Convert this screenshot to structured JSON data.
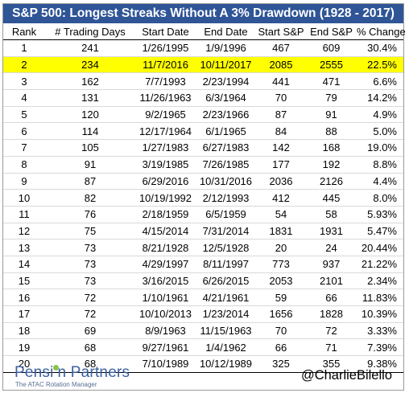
{
  "title": "S&P 500: Longest Streaks Without A 3% Drawdown (1928 - 2017)",
  "columns": [
    "Rank",
    "# Trading Days",
    "Start Date",
    "End Date",
    "Start S&P",
    "End S&P",
    "% Change"
  ],
  "rows": [
    [
      "1",
      "241",
      "1/26/1995",
      "1/9/1996",
      "467",
      "609",
      "30.4%"
    ],
    [
      "2",
      "234",
      "11/7/2016",
      "10/11/2017",
      "2085",
      "2555",
      "22.5%"
    ],
    [
      "3",
      "162",
      "7/7/1993",
      "2/23/1994",
      "441",
      "471",
      "6.6%"
    ],
    [
      "4",
      "131",
      "11/26/1963",
      "6/3/1964",
      "70",
      "79",
      "14.2%"
    ],
    [
      "5",
      "120",
      "9/2/1965",
      "2/23/1966",
      "87",
      "91",
      "4.9%"
    ],
    [
      "6",
      "114",
      "12/17/1964",
      "6/1/1965",
      "84",
      "88",
      "5.0%"
    ],
    [
      "7",
      "105",
      "1/27/1983",
      "6/27/1983",
      "142",
      "168",
      "19.0%"
    ],
    [
      "8",
      "91",
      "3/19/1985",
      "7/26/1985",
      "177",
      "192",
      "8.8%"
    ],
    [
      "9",
      "87",
      "6/29/2016",
      "10/31/2016",
      "2036",
      "2126",
      "4.4%"
    ],
    [
      "10",
      "82",
      "10/19/1992",
      "2/12/1993",
      "412",
      "445",
      "8.0%"
    ],
    [
      "11",
      "76",
      "2/18/1959",
      "6/5/1959",
      "54",
      "58",
      "5.93%"
    ],
    [
      "12",
      "75",
      "4/15/2014",
      "7/31/2014",
      "1831",
      "1931",
      "5.47%"
    ],
    [
      "13",
      "73",
      "8/21/1928",
      "12/5/1928",
      "20",
      "24",
      "20.44%"
    ],
    [
      "14",
      "73",
      "4/29/1997",
      "8/11/1997",
      "773",
      "937",
      "21.22%"
    ],
    [
      "15",
      "73",
      "3/16/2015",
      "6/26/2015",
      "2053",
      "2101",
      "2.34%"
    ],
    [
      "16",
      "72",
      "1/10/1961",
      "4/21/1961",
      "59",
      "66",
      "11.83%"
    ],
    [
      "17",
      "72",
      "10/10/2013",
      "1/23/2014",
      "1656",
      "1828",
      "10.39%"
    ],
    [
      "18",
      "69",
      "8/9/1963",
      "11/15/1963",
      "70",
      "72",
      "3.33%"
    ],
    [
      "19",
      "68",
      "9/27/1961",
      "1/4/1962",
      "66",
      "71",
      "7.39%"
    ],
    [
      "20",
      "68",
      "7/10/1989",
      "10/12/1989",
      "325",
      "355",
      "9.38%"
    ]
  ],
  "highlight_rank": "2",
  "highlight_color": "#ffff00",
  "title_bar_color": "#2f5597",
  "footer": {
    "logo_part1": "Pensi",
    "logo_part2": "n Partners",
    "logo_tagline": "The ATAC Rotation Manager",
    "logo_dot_color": "#8bc34a",
    "handle": "@CharlieBilello"
  }
}
